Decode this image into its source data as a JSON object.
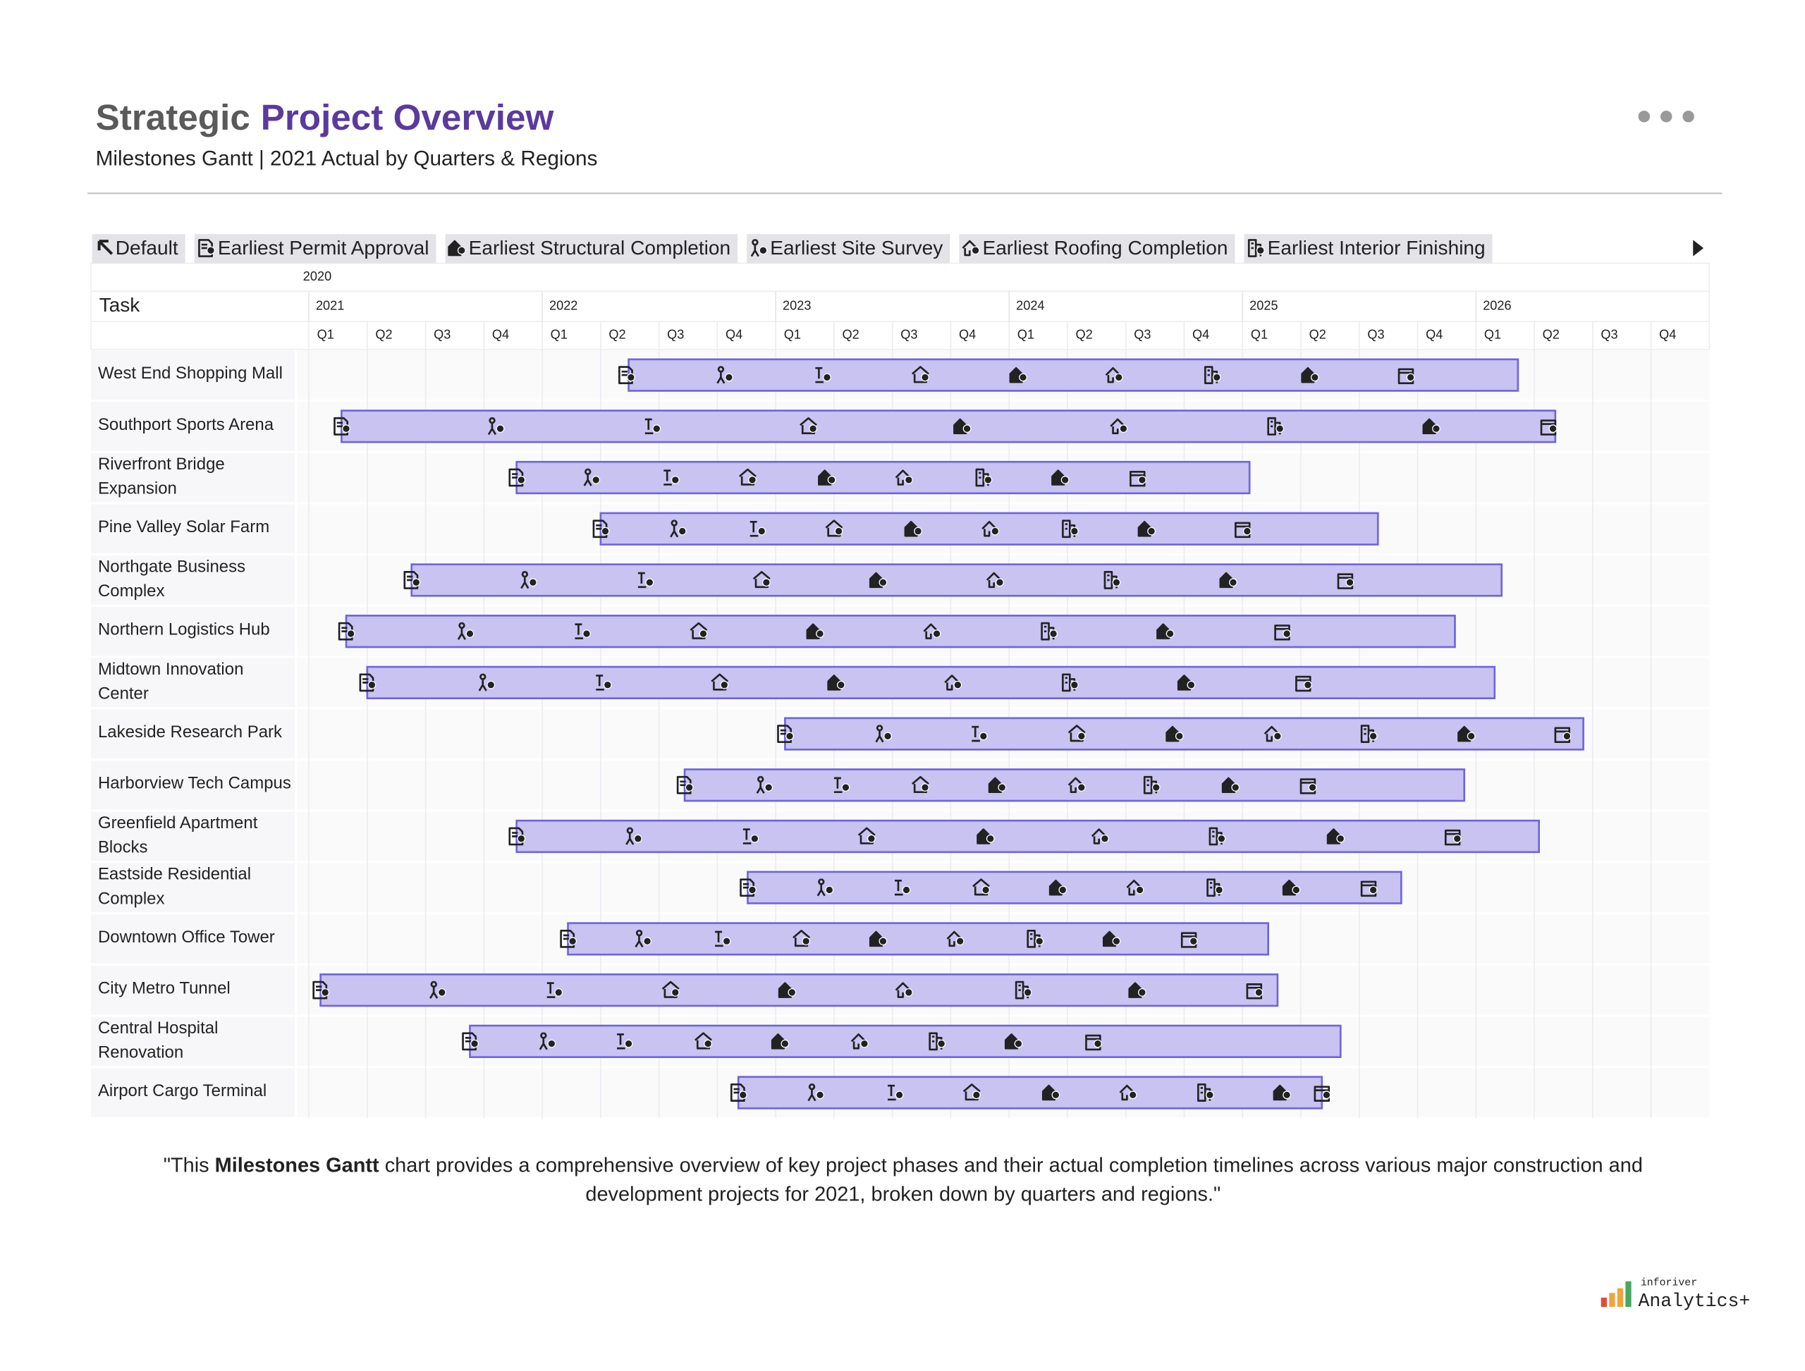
{
  "chart_data": {
    "type": "gantt",
    "title_prefix": "Strategic",
    "title": "Project Overview",
    "subtitle": "Milestones Gantt | 2021 Actual by Quarters & Regions",
    "legend": [
      "Default",
      "Earliest Permit Approval",
      "Earliest Structural Completion",
      "Earliest Site Survey",
      "Earliest Roofing Completion",
      "Earliest Interior Finishing"
    ],
    "task_header": "Task",
    "period_header": "2020",
    "xlim": [
      2021,
      2027
    ],
    "year_ticks": [
      2021,
      2022,
      2023,
      2024,
      2025,
      2026
    ],
    "quarter_ticks": [
      {
        "value": 2021,
        "label": "Q1"
      },
      {
        "value": 2021.25,
        "label": "Q2"
      },
      {
        "value": 2021.5,
        "label": "Q3"
      },
      {
        "value": 2021.75,
        "label": "Q4"
      },
      {
        "value": 2022,
        "label": "Q1"
      },
      {
        "value": 2022.25,
        "label": "Q2"
      },
      {
        "value": 2022.5,
        "label": "Q3"
      },
      {
        "value": 2022.75,
        "label": "Q4"
      },
      {
        "value": 2023,
        "label": "Q1"
      },
      {
        "value": 2023.25,
        "label": "Q2"
      },
      {
        "value": 2023.5,
        "label": "Q3"
      },
      {
        "value": 2023.75,
        "label": "Q4"
      },
      {
        "value": 2024,
        "label": "Q1"
      },
      {
        "value": 2024.25,
        "label": "Q2"
      },
      {
        "value": 2024.5,
        "label": "Q3"
      },
      {
        "value": 2024.75,
        "label": "Q4"
      },
      {
        "value": 2025,
        "label": "Q1"
      },
      {
        "value": 2025.25,
        "label": "Q2"
      },
      {
        "value": 2025.5,
        "label": "Q3"
      },
      {
        "value": 2025.75,
        "label": "Q4"
      },
      {
        "value": 2026,
        "label": "Q1"
      },
      {
        "value": 2026.25,
        "label": "Q2"
      },
      {
        "value": 2026.5,
        "label": "Q3"
      },
      {
        "value": 2026.75,
        "label": "Q4"
      }
    ],
    "bar_color": "#c8c3f0",
    "bar_border": "#7064e0",
    "grid": true,
    "tasks": [
      {
        "name": "West End Shopping Mall",
        "start": 2022.37,
        "end": 2026.18,
        "milestones": [
          2022.36,
          2022.78,
          2023.2,
          2023.62,
          2024.04,
          2024.45,
          2024.87,
          2025.29,
          2025.7
        ]
      },
      {
        "name": "Southport Sports Arena",
        "start": 2021.14,
        "end": 2026.34,
        "milestones": [
          2021.14,
          2021.8,
          2022.47,
          2023.14,
          2023.8,
          2024.47,
          2025.14,
          2025.81,
          2026.31
        ]
      },
      {
        "name": "Riverfront Bridge Expansion",
        "start": 2021.89,
        "end": 2025.03,
        "milestones": [
          2021.89,
          2022.21,
          2022.55,
          2022.88,
          2023.22,
          2023.55,
          2023.89,
          2024.22,
          2024.55
        ]
      },
      {
        "name": "Pine Valley Solar Farm",
        "start": 2022.25,
        "end": 2025.58,
        "milestones": [
          2022.25,
          2022.58,
          2022.92,
          2023.25,
          2023.59,
          2023.92,
          2024.26,
          2024.59,
          2025.0
        ]
      },
      {
        "name": "Northgate Business Complex",
        "start": 2021.44,
        "end": 2026.11,
        "milestones": [
          2021.44,
          2021.94,
          2022.44,
          2022.94,
          2023.44,
          2023.94,
          2024.44,
          2024.94,
          2025.44
        ]
      },
      {
        "name": "Northern Logistics Hub",
        "start": 2021.16,
        "end": 2025.91,
        "milestones": [
          2021.16,
          2021.67,
          2022.17,
          2022.67,
          2023.17,
          2023.67,
          2024.17,
          2024.67,
          2025.17
        ]
      },
      {
        "name": "Midtown Innovation Center",
        "start": 2021.25,
        "end": 2026.08,
        "milestones": [
          2021.25,
          2021.76,
          2022.26,
          2022.76,
          2023.26,
          2023.76,
          2024.26,
          2024.76,
          2025.26
        ]
      },
      {
        "name": "Lakeside Research Park",
        "start": 2023.04,
        "end": 2026.46,
        "milestones": [
          2023.04,
          2023.46,
          2023.87,
          2024.29,
          2024.71,
          2025.13,
          2025.54,
          2025.96,
          2026.37
        ]
      },
      {
        "name": "Harborview Tech Campus",
        "start": 2022.61,
        "end": 2025.95,
        "milestones": [
          2022.61,
          2022.95,
          2023.28,
          2023.62,
          2023.95,
          2024.29,
          2024.61,
          2024.95,
          2025.28
        ]
      },
      {
        "name": "Greenfield Apartment Blocks",
        "start": 2021.89,
        "end": 2026.27,
        "milestones": [
          2021.89,
          2022.39,
          2022.89,
          2023.39,
          2023.9,
          2024.39,
          2024.89,
          2025.4,
          2025.9
        ]
      },
      {
        "name": "Eastside Residential Complex",
        "start": 2022.88,
        "end": 2025.68,
        "milestones": [
          2022.88,
          2023.21,
          2023.54,
          2023.88,
          2024.21,
          2024.54,
          2024.88,
          2025.21,
          2025.54
        ]
      },
      {
        "name": "Downtown Office Tower",
        "start": 2022.11,
        "end": 2025.11,
        "milestones": [
          2022.11,
          2022.43,
          2022.77,
          2023.11,
          2023.44,
          2023.77,
          2024.11,
          2024.44,
          2024.77
        ]
      },
      {
        "name": "City Metro Tunnel",
        "start": 2021.05,
        "end": 2025.15,
        "milestones": [
          2021.05,
          2021.55,
          2022.05,
          2022.55,
          2023.05,
          2023.55,
          2024.06,
          2024.55,
          2025.05
        ]
      },
      {
        "name": "Central Hospital Renovation",
        "start": 2021.69,
        "end": 2025.42,
        "milestones": [
          2021.69,
          2022.02,
          2022.35,
          2022.69,
          2023.02,
          2023.36,
          2023.69,
          2024.02,
          2024.36
        ]
      },
      {
        "name": "Airport Cargo Terminal",
        "start": 2022.84,
        "end": 2025.34,
        "milestones": [
          2022.84,
          2023.17,
          2023.51,
          2023.84,
          2024.18,
          2024.51,
          2024.84,
          2025.17,
          2025.34
        ]
      }
    ],
    "footnote": [
      "\"This ",
      "Milestones Gantt",
      " chart provides a comprehensive overview of key project phases and their actual completion timelines across various major construction and development projects for 2021, broken down by quarters and regions.\""
    ],
    "branding": [
      "inforiver",
      "Analytics+"
    ]
  }
}
